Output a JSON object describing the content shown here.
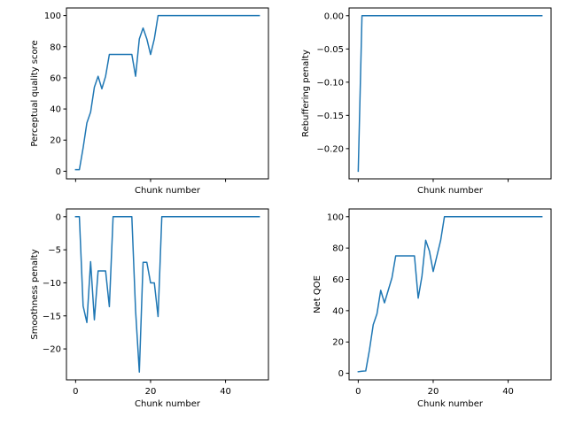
{
  "chart_data": [
    {
      "type": "line",
      "xlabel": "Chunk number",
      "ylabel": "Perceptual quality score",
      "xlim": [
        -2.45,
        51.45
      ],
      "ylim": [
        -4.9,
        104.9
      ],
      "xticks": [
        0,
        20,
        40
      ],
      "xtick_labels": [
        "",
        "",
        ""
      ],
      "yticks": [
        0,
        20,
        40,
        60,
        80,
        100
      ],
      "ytick_labels": [
        "0",
        "20",
        "40",
        "60",
        "80",
        "100"
      ],
      "grid": false,
      "color": "#1f77b4",
      "x": [
        0,
        1,
        2,
        3,
        4,
        5,
        6,
        7,
        8,
        9,
        10,
        11,
        12,
        13,
        14,
        15,
        16,
        17,
        18,
        19,
        20,
        21,
        22,
        23,
        24,
        25,
        26,
        27,
        28,
        29,
        30,
        31,
        32,
        33,
        34,
        35,
        36,
        37,
        38,
        39,
        40,
        41,
        42,
        43,
        44,
        45,
        46,
        47,
        48,
        49
      ],
      "y": [
        1,
        1,
        15,
        31,
        38,
        54,
        61,
        53,
        61,
        75,
        75,
        75,
        75,
        75,
        75,
        75,
        61,
        85,
        92,
        85,
        75,
        85,
        100,
        100,
        100,
        100,
        100,
        100,
        100,
        100,
        100,
        100,
        100,
        100,
        100,
        100,
        100,
        100,
        100,
        100,
        100,
        100,
        100,
        100,
        100,
        100,
        100,
        100,
        100,
        100
      ]
    },
    {
      "type": "line",
      "xlabel": "Chunk number",
      "ylabel": "Rebuffering penalty",
      "xlim": [
        -2.45,
        51.45
      ],
      "ylim": [
        -0.2455,
        0.0117
      ],
      "xticks": [
        0,
        20,
        40
      ],
      "xtick_labels": [
        "",
        "",
        ""
      ],
      "yticks": [
        -0.2,
        -0.15,
        -0.1,
        -0.05,
        0.0
      ],
      "ytick_labels": [
        "−0.20",
        "−0.15",
        "−0.10",
        "−0.05",
        "0.00"
      ],
      "grid": false,
      "color": "#1f77b4",
      "x": [
        0,
        1,
        2,
        3,
        4,
        5,
        6,
        7,
        8,
        9,
        10,
        11,
        12,
        13,
        14,
        15,
        16,
        17,
        18,
        19,
        20,
        21,
        22,
        23,
        24,
        25,
        26,
        27,
        28,
        29,
        30,
        31,
        32,
        33,
        34,
        35,
        36,
        37,
        38,
        39,
        40,
        41,
        42,
        43,
        44,
        45,
        46,
        47,
        48,
        49
      ],
      "y": [
        -0.234,
        0,
        0,
        0,
        0,
        0,
        0,
        0,
        0,
        0,
        0,
        0,
        0,
        0,
        0,
        0,
        0,
        0,
        0,
        0,
        0,
        0,
        0,
        0,
        0,
        0,
        0,
        0,
        0,
        0,
        0,
        0,
        0,
        0,
        0,
        0,
        0,
        0,
        0,
        0,
        0,
        0,
        0,
        0,
        0,
        0,
        0,
        0,
        0,
        0
      ]
    },
    {
      "type": "line",
      "xlabel": "Chunk number",
      "ylabel": "Smoothness penalty",
      "xlim": [
        -2.45,
        51.45
      ],
      "ylim": [
        -24.68,
        1.18
      ],
      "xticks": [
        0,
        20,
        40
      ],
      "xtick_labels": [
        "0",
        "20",
        "40"
      ],
      "yticks": [
        -20,
        -15,
        -10,
        -5,
        0
      ],
      "ytick_labels": [
        "−20",
        "−15",
        "−10",
        "−5",
        "0"
      ],
      "grid": false,
      "color": "#1f77b4",
      "x": [
        0,
        1,
        2,
        3,
        4,
        5,
        6,
        7,
        8,
        9,
        10,
        11,
        12,
        13,
        14,
        15,
        16,
        17,
        18,
        19,
        20,
        21,
        22,
        23,
        24,
        25,
        26,
        27,
        28,
        29,
        30,
        31,
        32,
        33,
        34,
        35,
        36,
        37,
        38,
        39,
        40,
        41,
        42,
        43,
        44,
        45,
        46,
        47,
        48,
        49
      ],
      "y": [
        0,
        0,
        -13.5,
        -16,
        -6.8,
        -15.6,
        -8.2,
        -8.2,
        -8.2,
        -13.6,
        0,
        0,
        0,
        0,
        0,
        0,
        -14.2,
        -23.5,
        -6.9,
        -6.9,
        -10,
        -10,
        -15.1,
        0,
        0,
        0,
        0,
        0,
        0,
        0,
        0,
        0,
        0,
        0,
        0,
        0,
        0,
        0,
        0,
        0,
        0,
        0,
        0,
        0,
        0,
        0,
        0,
        0,
        0,
        0
      ]
    },
    {
      "type": "line",
      "xlabel": "Chunk number",
      "ylabel": "Net QOE",
      "xlim": [
        -2.45,
        51.45
      ],
      "ylim": [
        -4.19,
        104.97
      ],
      "xticks": [
        0,
        20,
        40
      ],
      "xtick_labels": [
        "0",
        "20",
        "40"
      ],
      "yticks": [
        0,
        20,
        40,
        60,
        80,
        100
      ],
      "ytick_labels": [
        "0",
        "20",
        "40",
        "60",
        "80",
        "100"
      ],
      "grid": false,
      "color": "#1f77b4",
      "x": [
        0,
        1,
        2,
        3,
        4,
        5,
        6,
        7,
        8,
        9,
        10,
        11,
        12,
        13,
        14,
        15,
        16,
        17,
        18,
        19,
        20,
        21,
        22,
        23,
        24,
        25,
        26,
        27,
        28,
        29,
        30,
        31,
        32,
        33,
        34,
        35,
        36,
        37,
        38,
        39,
        40,
        41,
        42,
        43,
        44,
        45,
        46,
        47,
        48,
        49
      ],
      "y": [
        1,
        1.3,
        1.5,
        15,
        31,
        38,
        53,
        45,
        53,
        61,
        75,
        75,
        75,
        75,
        75,
        75,
        48,
        62,
        85,
        78,
        65,
        75,
        85,
        100,
        100,
        100,
        100,
        100,
        100,
        100,
        100,
        100,
        100,
        100,
        100,
        100,
        100,
        100,
        100,
        100,
        100,
        100,
        100,
        100,
        100,
        100,
        100,
        100,
        100,
        100
      ]
    }
  ]
}
